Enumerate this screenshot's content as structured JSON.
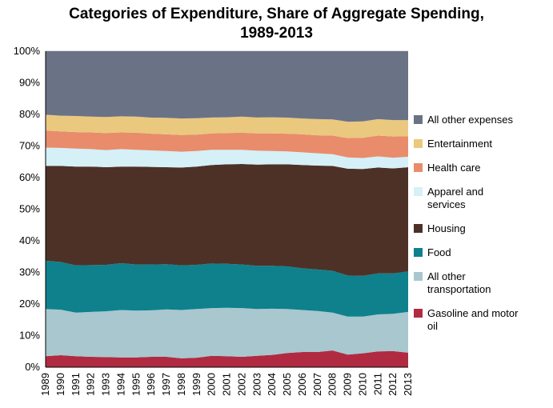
{
  "title": {
    "line1": "Categories of Expenditure, Share of Aggregate Spending,",
    "line2": "1989-2013"
  },
  "chart_data": {
    "type": "area",
    "stacked": true,
    "units": "percent",
    "title": "Categories of Expenditure, Share of Aggregate Spending, 1989-2013",
    "xlabel": "",
    "ylabel": "",
    "x": [
      1989,
      1990,
      1991,
      1992,
      1993,
      1994,
      1995,
      1996,
      1997,
      1998,
      1999,
      2000,
      2001,
      2002,
      2003,
      2004,
      2005,
      2006,
      2007,
      2008,
      2009,
      2010,
      2011,
      2012,
      2013
    ],
    "ylim": [
      0,
      100
    ],
    "ytick_values": [
      0,
      10,
      20,
      30,
      40,
      50,
      60,
      70,
      80,
      90,
      100
    ],
    "ytick_format": "{v}%",
    "grid": true,
    "legend_position": "right",
    "series_order": "bottom_to_top",
    "series": [
      {
        "name": "Gasoline and motor oil",
        "color": "#B02B42",
        "values": [
          3.5,
          3.8,
          3.5,
          3.3,
          3.2,
          3.1,
          3.1,
          3.3,
          3.3,
          2.8,
          3.0,
          3.6,
          3.5,
          3.3,
          3.6,
          3.9,
          4.5,
          4.8,
          4.8,
          5.3,
          4.0,
          4.4,
          5.0,
          5.1,
          4.6
        ]
      },
      {
        "name": "All other transportation",
        "color": "#A8C7CE",
        "values": [
          14.9,
          14.4,
          13.8,
          14.2,
          14.5,
          15.0,
          14.8,
          14.7,
          15.0,
          15.3,
          15.4,
          15.1,
          15.3,
          15.4,
          14.8,
          14.6,
          13.9,
          13.3,
          13.0,
          12.0,
          12.0,
          11.6,
          11.7,
          11.8,
          12.9
        ]
      },
      {
        "name": "Food",
        "color": "#0E818C",
        "values": [
          15.3,
          15.1,
          14.9,
          14.8,
          14.7,
          14.8,
          14.6,
          14.5,
          14.3,
          14.1,
          14.0,
          14.1,
          13.9,
          13.8,
          13.7,
          13.6,
          13.5,
          13.2,
          13.1,
          13.2,
          13.0,
          12.9,
          13.0,
          12.8,
          12.8
        ]
      },
      {
        "name": "Housing",
        "color": "#4D3127",
        "values": [
          30.0,
          30.4,
          31.3,
          31.2,
          30.9,
          30.6,
          31.0,
          30.9,
          30.7,
          31.0,
          31.1,
          31.2,
          31.5,
          31.8,
          32.0,
          32.1,
          32.3,
          32.7,
          32.9,
          33.2,
          33.8,
          33.8,
          33.5,
          33.2,
          33.0
        ]
      },
      {
        "name": "Apparel and services",
        "color": "#D5F0F7",
        "values": [
          5.8,
          5.7,
          5.7,
          5.5,
          5.4,
          5.5,
          5.3,
          5.2,
          5.1,
          5.0,
          4.9,
          4.8,
          4.6,
          4.5,
          4.4,
          4.2,
          4.1,
          4.0,
          3.9,
          3.7,
          3.6,
          3.5,
          3.5,
          3.4,
          3.3
        ]
      },
      {
        "name": "Health care",
        "color": "#E98C6B",
        "values": [
          5.4,
          5.2,
          5.2,
          5.3,
          5.4,
          5.3,
          5.4,
          5.3,
          5.3,
          5.3,
          5.2,
          5.2,
          5.3,
          5.4,
          5.5,
          5.6,
          5.6,
          5.7,
          5.7,
          5.9,
          6.1,
          6.4,
          6.6,
          6.7,
          6.5
        ]
      },
      {
        "name": "Entertainment",
        "color": "#EAC87E",
        "values": [
          5.0,
          5.0,
          5.1,
          5.0,
          5.1,
          5.1,
          5.1,
          5.1,
          5.2,
          5.2,
          5.2,
          5.0,
          5.0,
          5.1,
          5.0,
          5.1,
          5.1,
          5.0,
          5.1,
          5.1,
          5.2,
          5.2,
          5.2,
          5.2,
          5.1
        ]
      },
      {
        "name": "All other expenses",
        "color": "#6A7285",
        "values": [
          20.1,
          20.4,
          20.5,
          20.7,
          20.8,
          20.6,
          20.7,
          21.0,
          21.1,
          21.3,
          21.2,
          21.0,
          20.9,
          20.7,
          21.0,
          20.9,
          21.0,
          21.3,
          21.5,
          21.6,
          22.3,
          22.2,
          21.5,
          21.8,
          21.8
        ]
      }
    ],
    "legend_entries": [
      "All other expenses",
      "Entertainment",
      "Health care",
      "Apparel and services",
      "Housing",
      "Food",
      "All other transportation",
      "Gasoline and motor oil"
    ]
  }
}
